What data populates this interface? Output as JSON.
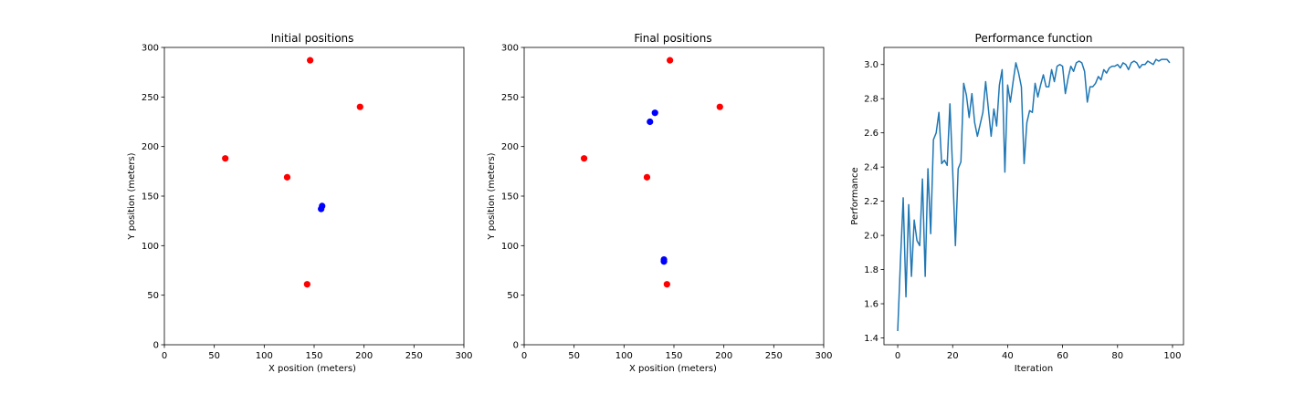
{
  "chart_data": [
    {
      "type": "scatter",
      "title": "Initial positions",
      "xlabel": "X position (meters)",
      "ylabel": "Y position (meters)",
      "xlim": [
        0,
        300
      ],
      "ylim": [
        0,
        300
      ],
      "xticks": [
        0,
        50,
        100,
        150,
        200,
        250,
        300
      ],
      "yticks": [
        0,
        50,
        100,
        150,
        200,
        250,
        300
      ],
      "grid": false,
      "series": [
        {
          "color": "#ff0000",
          "points": [
            [
              146,
              287
            ],
            [
              196,
              240
            ],
            [
              61,
              188
            ],
            [
              123,
              169
            ],
            [
              143,
              61
            ]
          ]
        },
        {
          "color": "#0000ff",
          "points": [
            [
              158,
              140
            ],
            [
              157,
              137
            ]
          ]
        }
      ]
    },
    {
      "type": "scatter",
      "title": "Final positions",
      "xlabel": "X position (meters)",
      "ylabel": "Y position (meters)",
      "xlim": [
        0,
        300
      ],
      "ylim": [
        0,
        300
      ],
      "xticks": [
        0,
        50,
        100,
        150,
        200,
        250,
        300
      ],
      "yticks": [
        0,
        50,
        100,
        150,
        200,
        250,
        300
      ],
      "grid": false,
      "series": [
        {
          "color": "#ff0000",
          "points": [
            [
              146,
              287
            ],
            [
              196,
              240
            ],
            [
              60,
              188
            ],
            [
              123,
              169
            ],
            [
              143,
              61
            ]
          ]
        },
        {
          "color": "#0000ff",
          "points": [
            [
              131,
              234
            ],
            [
              126,
              225
            ],
            [
              140,
              86
            ],
            [
              140,
              84
            ]
          ]
        }
      ]
    },
    {
      "type": "line",
      "title": "Performance function",
      "xlabel": "Iteration",
      "ylabel": "Performance",
      "xlim": [
        -5,
        104
      ],
      "ylim": [
        1.36,
        3.1
      ],
      "xticks": [
        0,
        20,
        40,
        60,
        80,
        100
      ],
      "yticks": [
        1.4,
        1.6,
        1.8,
        2.0,
        2.2,
        2.4,
        2.6,
        2.8,
        3.0
      ],
      "tick_labels_y": [
        "1.4",
        "1.6",
        "1.8",
        "2.0",
        "2.2",
        "2.4",
        "2.6",
        "2.8",
        "3.0"
      ],
      "grid": false,
      "series": [
        {
          "color": "#1f77b4",
          "x": [
            0,
            1,
            2,
            3,
            4,
            5,
            6,
            7,
            8,
            9,
            10,
            11,
            12,
            13,
            14,
            15,
            16,
            17,
            18,
            19,
            20,
            21,
            22,
            23,
            24,
            25,
            26,
            27,
            28,
            29,
            30,
            31,
            32,
            33,
            34,
            35,
            36,
            37,
            38,
            39,
            40,
            41,
            42,
            43,
            44,
            45,
            46,
            47,
            48,
            49,
            50,
            51,
            52,
            53,
            54,
            55,
            56,
            57,
            58,
            59,
            60,
            61,
            62,
            63,
            64,
            65,
            66,
            67,
            68,
            69,
            70,
            71,
            72,
            73,
            74,
            75,
            76,
            77,
            78,
            79,
            80,
            81,
            82,
            83,
            84,
            85,
            86,
            87,
            88,
            89,
            90,
            91,
            92,
            93,
            94,
            95,
            96,
            97,
            98,
            99
          ],
          "y": [
            1.44,
            1.85,
            2.22,
            1.64,
            2.18,
            1.76,
            2.09,
            1.97,
            1.94,
            2.33,
            1.76,
            2.39,
            2.01,
            2.56,
            2.6,
            2.72,
            2.42,
            2.44,
            2.41,
            2.77,
            2.38,
            1.94,
            2.39,
            2.43,
            2.89,
            2.82,
            2.69,
            2.83,
            2.66,
            2.58,
            2.65,
            2.72,
            2.9,
            2.74,
            2.58,
            2.74,
            2.64,
            2.88,
            2.97,
            2.37,
            2.88,
            2.78,
            2.9,
            3.01,
            2.95,
            2.87,
            2.42,
            2.66,
            2.73,
            2.72,
            2.89,
            2.81,
            2.88,
            2.94,
            2.87,
            2.87,
            2.97,
            2.9,
            2.99,
            3.0,
            2.99,
            2.83,
            2.92,
            2.99,
            2.96,
            3.01,
            3.02,
            3.01,
            2.96,
            2.78,
            2.87,
            2.87,
            2.89,
            2.93,
            2.91,
            2.97,
            2.95,
            2.98,
            2.99,
            2.99,
            3.0,
            2.98,
            3.01,
            3.0,
            2.97,
            3.01,
            3.02,
            3.01,
            2.98,
            3.0,
            3.0,
            3.02,
            3.01,
            3.0,
            3.03,
            3.02,
            3.03,
            3.03,
            3.03,
            3.01
          ]
        }
      ]
    }
  ]
}
